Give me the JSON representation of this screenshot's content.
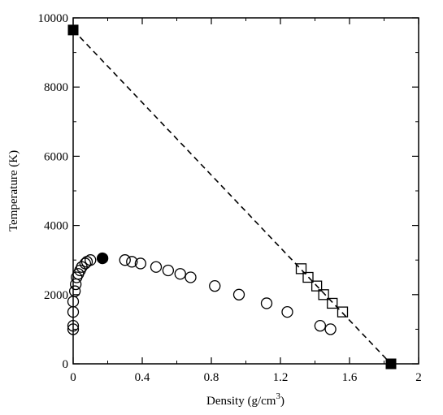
{
  "chart_data": {
    "type": "scatter",
    "xlabel": "Density (g/cm",
    "xlabel_superscript": "3",
    "xlabel_suffix": ")",
    "ylabel": "Temperature (K)",
    "xlim": [
      0,
      2
    ],
    "ylim": [
      0,
      10000
    ],
    "xticks": [
      0,
      0.4,
      0.8,
      1.2,
      1.6,
      2
    ],
    "xtick_labels": [
      "0",
      "0.4",
      "0.8",
      "1.2",
      "1.6",
      "2"
    ],
    "yticks": [
      0,
      2000,
      4000,
      6000,
      8000,
      10000
    ],
    "ytick_labels": [
      "0",
      "2000",
      "4000",
      "6000",
      "8000",
      "10000"
    ],
    "grid": false,
    "series": [
      {
        "marker": "open-circle",
        "points": [
          [
            0.0,
            1000
          ],
          [
            0.0,
            1100
          ],
          [
            0.0,
            1500
          ],
          [
            0.0,
            1800
          ],
          [
            0.01,
            2100
          ],
          [
            0.015,
            2300
          ],
          [
            0.02,
            2500
          ],
          [
            0.03,
            2600
          ],
          [
            0.04,
            2700
          ],
          [
            0.05,
            2800
          ],
          [
            0.07,
            2900
          ],
          [
            0.08,
            2950
          ],
          [
            0.1,
            3000
          ],
          [
            0.3,
            3000
          ],
          [
            0.34,
            2950
          ],
          [
            0.39,
            2900
          ],
          [
            0.48,
            2800
          ],
          [
            0.55,
            2700
          ],
          [
            0.62,
            2600
          ],
          [
            0.68,
            2500
          ],
          [
            0.82,
            2250
          ],
          [
            0.96,
            2000
          ],
          [
            1.12,
            1750
          ],
          [
            1.24,
            1500
          ],
          [
            1.43,
            1100
          ],
          [
            1.49,
            1000
          ]
        ]
      },
      {
        "marker": "filled-circle",
        "points": [
          [
            0.17,
            3050
          ]
        ]
      },
      {
        "marker": "open-square",
        "points": [
          [
            1.32,
            2750
          ],
          [
            1.36,
            2500
          ],
          [
            1.41,
            2250
          ],
          [
            1.45,
            2000
          ],
          [
            1.5,
            1750
          ],
          [
            1.56,
            1500
          ]
        ]
      },
      {
        "marker": "filled-square",
        "points": [
          [
            0.0,
            9650
          ],
          [
            1.84,
            0
          ]
        ]
      },
      {
        "marker": "dashed-line",
        "points": [
          [
            0.0,
            9650
          ],
          [
            1.84,
            0
          ]
        ]
      }
    ]
  }
}
